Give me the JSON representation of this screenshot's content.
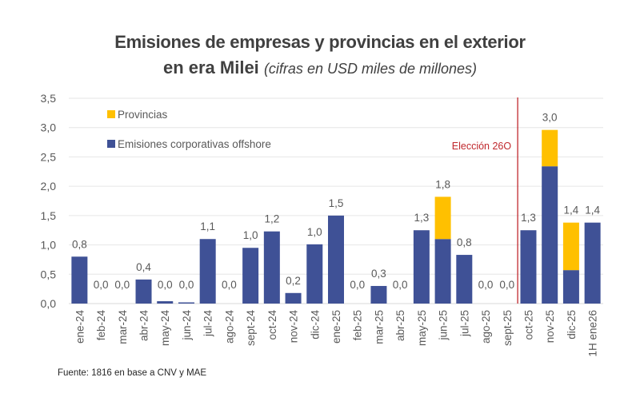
{
  "header": {
    "title_line1": "Emisiones de empresas y provincias en el exterior",
    "title_line2_bold": "en era Milei",
    "title_line2_italic": "(cifras en USD miles de millones)"
  },
  "footer": {
    "source": "Fuente: 1816 en base a CNV y MAE"
  },
  "colors": {
    "corporate": "#3F5196",
    "provincias": "#FFC000",
    "election_line": "#C0282D",
    "text": "#595959",
    "grid": "#E6E6E6"
  },
  "chart_data": {
    "type": "bar",
    "stacked": true,
    "title": "Emisiones de empresas y provincias en el exterior en era Milei (cifras en USD miles de millones)",
    "xlabel": "",
    "ylabel": "",
    "ylim": [
      0,
      3.5
    ],
    "yticks": [
      "0,0",
      "0,5",
      "1,0",
      "1,5",
      "2,0",
      "2,5",
      "3,0",
      "3,5"
    ],
    "ytick_values": [
      0,
      0.5,
      1.0,
      1.5,
      2.0,
      2.5,
      3.0,
      3.5
    ],
    "grid": true,
    "legend_position": "top-left",
    "categories": [
      "ene-24",
      "feb-24",
      "mar-24",
      "abr-24",
      "may-24",
      "jun-24",
      "jul-24",
      "ago-24",
      "sept-24",
      "oct-24",
      "nov-24",
      "dic-24",
      "ene-25",
      "feb-25",
      "mar-25",
      "abr-25",
      "may-25",
      "jun-25",
      "jul-25",
      "ago-25",
      "sept-25",
      "oct-25",
      "nov-25",
      "dic-25",
      "1H ene26"
    ],
    "series": [
      {
        "name": "Emisiones corporativas offshore",
        "color": "#3F5196",
        "values": [
          0.8,
          0.0,
          0.0,
          0.41,
          0.04,
          0.02,
          1.1,
          0.0,
          0.95,
          1.23,
          0.18,
          1.01,
          1.5,
          0.0,
          0.3,
          0.0,
          1.25,
          1.1,
          0.83,
          0.0,
          0.0,
          1.25,
          2.34,
          0.57,
          1.38
        ]
      },
      {
        "name": "Provincias",
        "color": "#FFC000",
        "values": [
          0,
          0,
          0,
          0,
          0,
          0,
          0,
          0,
          0,
          0,
          0,
          0,
          0,
          0,
          0,
          0,
          0,
          0.72,
          0,
          0,
          0,
          0,
          0.62,
          0.81,
          0
        ]
      }
    ],
    "data_labels": [
      "0,8",
      "0,0",
      "0,0",
      "0,4",
      "0,0",
      "0,0",
      "1,1",
      "0,0",
      "1,0",
      "1,2",
      "0,2",
      "1,0",
      "1,5",
      "0,0",
      "0,3",
      "0,0",
      "1,3",
      "1,8",
      "0,8",
      "0,0",
      "0,0",
      "1,3",
      "3,0",
      "1,4",
      "1,4"
    ],
    "legend": [
      {
        "name": "Provincias",
        "color": "#FFC000"
      },
      {
        "name": "Emisiones corporativas offshore",
        "color": "#3F5196"
      }
    ],
    "annotations": [
      {
        "text": "Elección 26O",
        "type": "vertical-line",
        "between": [
          "sept-25",
          "oct-25"
        ],
        "color": "#C0282D"
      }
    ]
  }
}
